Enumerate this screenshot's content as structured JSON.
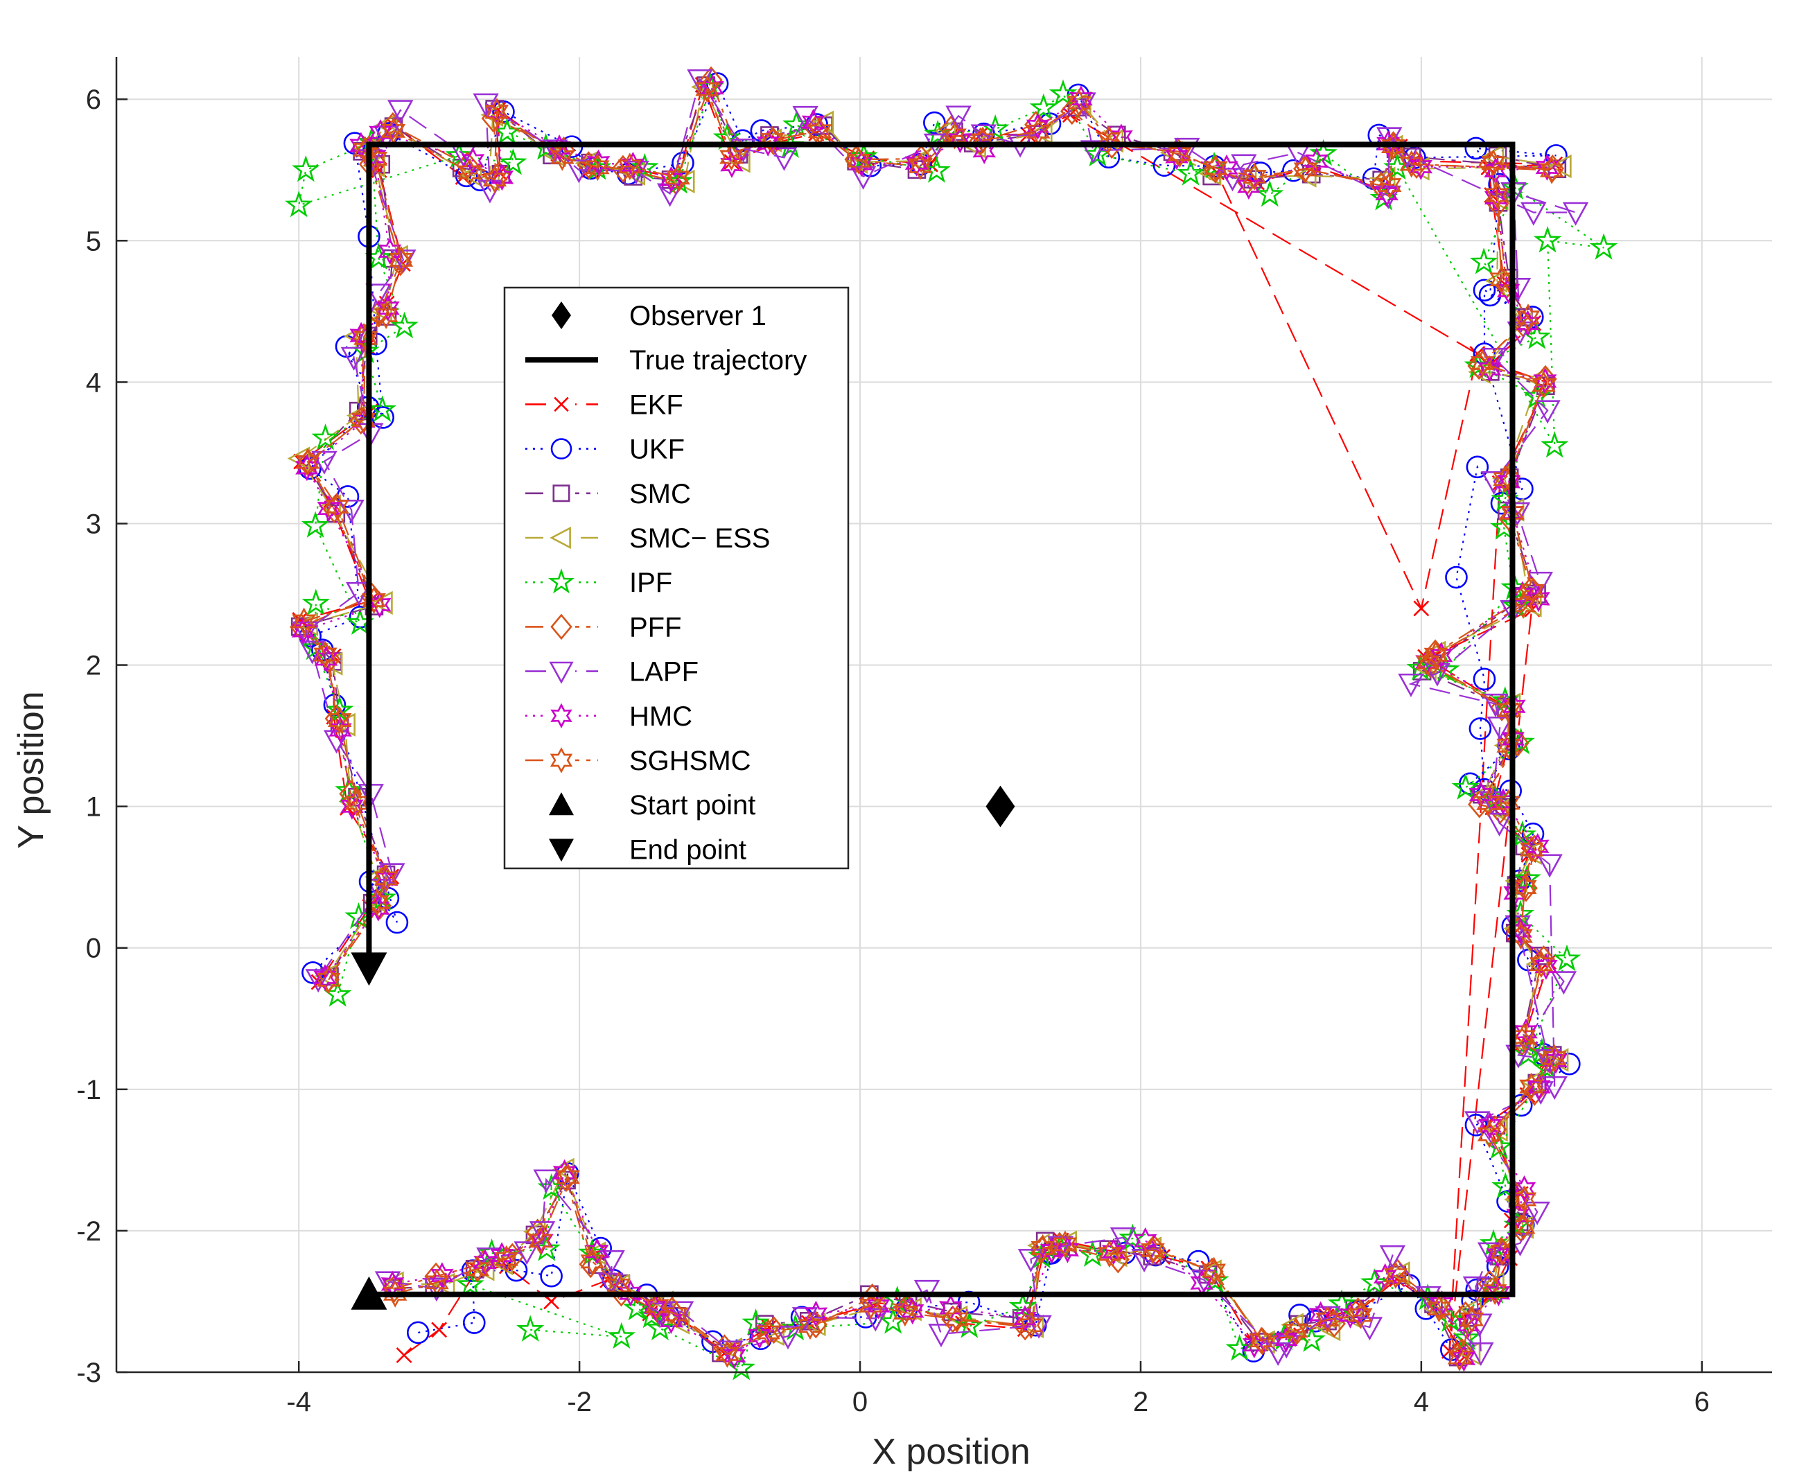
{
  "chart_data": {
    "type": "line",
    "title": "",
    "xlabel": "X position",
    "ylabel": "Y position",
    "xlim": [
      -5.3,
      6.5
    ],
    "ylim": [
      -3,
      6.3
    ],
    "xticks": [
      -4,
      -2,
      0,
      2,
      4,
      6
    ],
    "yticks": [
      -3,
      -2,
      -1,
      0,
      1,
      2,
      3,
      4,
      5,
      6
    ],
    "xtick_labels": [
      "-4",
      "-2",
      "0",
      "2",
      "4",
      "6"
    ],
    "ytick_labels": [
      "-3",
      "-2",
      "-1",
      "0",
      "1",
      "2",
      "3",
      "4",
      "5",
      "6"
    ],
    "grid": true,
    "legend_position": "center-left",
    "observer": {
      "name": "Observer 1",
      "x": 1.0,
      "y": 1.0,
      "color": "#000000"
    },
    "true_trajectory": {
      "name": "True trajectory",
      "color": "#000000",
      "points": [
        [
          -3.5,
          -2.45
        ],
        [
          4.65,
          -2.45
        ],
        [
          4.65,
          5.68
        ],
        [
          -3.5,
          5.68
        ],
        [
          -3.5,
          -0.15
        ]
      ]
    },
    "start_point": {
      "name": "Start point",
      "x": -3.5,
      "y": -2.45
    },
    "end_point": {
      "name": "End point",
      "x": -3.5,
      "y": -0.15
    },
    "base_estimate": [
      [
        -3.3,
        -2.42
      ],
      [
        -3.0,
        -2.35
      ],
      [
        -2.7,
        -2.25
      ],
      [
        -2.5,
        -2.2
      ],
      [
        -2.3,
        -2.05
      ],
      [
        -2.1,
        -1.6
      ],
      [
        -1.9,
        -2.2
      ],
      [
        -1.7,
        -2.4
      ],
      [
        -1.45,
        -2.55
      ],
      [
        -1.3,
        -2.6
      ],
      [
        -0.95,
        -2.85
      ],
      [
        -0.65,
        -2.7
      ],
      [
        -0.35,
        -2.65
      ],
      [
        0.1,
        -2.5
      ],
      [
        0.35,
        -2.55
      ],
      [
        0.7,
        -2.6
      ],
      [
        1.2,
        -2.65
      ],
      [
        1.3,
        -2.1
      ],
      [
        1.45,
        -2.12
      ],
      [
        1.8,
        -2.18
      ],
      [
        2.1,
        -2.13
      ],
      [
        2.5,
        -2.3
      ],
      [
        2.85,
        -2.75
      ],
      [
        3.1,
        -2.7
      ],
      [
        3.35,
        -2.65
      ],
      [
        3.55,
        -2.6
      ],
      [
        3.8,
        -2.3
      ],
      [
        4.1,
        -2.55
      ],
      [
        4.3,
        -2.88
      ],
      [
        4.35,
        -2.6
      ],
      [
        4.5,
        -2.4
      ],
      [
        4.6,
        -2.15
      ],
      [
        4.7,
        -1.95
      ],
      [
        4.72,
        -1.75
      ],
      [
        4.5,
        -1.3
      ],
      [
        4.8,
        -1.0
      ],
      [
        4.95,
        -0.8
      ],
      [
        4.75,
        -0.65
      ],
      [
        4.88,
        -0.1
      ],
      [
        4.7,
        0.1
      ],
      [
        4.72,
        0.45
      ],
      [
        4.78,
        0.7
      ],
      [
        4.6,
        1.0
      ],
      [
        4.45,
        1.05
      ],
      [
        4.65,
        1.45
      ],
      [
        4.6,
        1.7
      ],
      [
        4.05,
        2.0
      ],
      [
        4.1,
        2.05
      ],
      [
        4.75,
        2.45
      ],
      [
        4.78,
        2.5
      ],
      [
        4.62,
        3.05
      ],
      [
        4.6,
        3.3
      ],
      [
        4.85,
        4.0
      ],
      [
        4.45,
        4.12
      ],
      [
        4.75,
        4.45
      ],
      [
        4.58,
        4.7
      ],
      [
        4.55,
        5.3
      ],
      [
        4.5,
        5.55
      ],
      [
        4.95,
        5.52
      ],
      [
        3.95,
        5.55
      ],
      [
        3.8,
        5.65
      ],
      [
        3.75,
        5.4
      ],
      [
        3.2,
        5.5
      ],
      [
        2.8,
        5.45
      ],
      [
        2.55,
        5.5
      ],
      [
        2.25,
        5.6
      ],
      [
        1.8,
        5.7
      ],
      [
        1.55,
        5.95
      ],
      [
        1.25,
        5.8
      ],
      [
        0.85,
        5.7
      ],
      [
        0.65,
        5.75
      ],
      [
        0.45,
        5.55
      ],
      [
        0.0,
        5.55
      ],
      [
        -0.3,
        5.8
      ],
      [
        -0.6,
        5.7
      ],
      [
        -0.9,
        5.6
      ],
      [
        -1.1,
        6.1
      ],
      [
        -1.3,
        5.45
      ],
      [
        -1.65,
        5.5
      ],
      [
        -1.9,
        5.5
      ],
      [
        -2.15,
        5.6
      ],
      [
        -2.6,
        5.9
      ],
      [
        -2.6,
        5.45
      ],
      [
        -2.8,
        5.5
      ],
      [
        -3.35,
        5.8
      ],
      [
        -3.5,
        5.65
      ],
      [
        -3.45,
        5.55
      ],
      [
        -3.3,
        4.88
      ],
      [
        -3.4,
        4.5
      ],
      [
        -3.55,
        4.3
      ],
      [
        -3.55,
        3.75
      ],
      [
        -3.95,
        3.45
      ],
      [
        -3.75,
        3.1
      ],
      [
        -3.45,
        2.45
      ],
      [
        -3.95,
        2.3
      ],
      [
        -3.8,
        2.05
      ],
      [
        -3.7,
        1.6
      ],
      [
        -3.6,
        1.05
      ],
      [
        -3.4,
        0.5
      ],
      [
        -3.45,
        0.3
      ],
      [
        -3.8,
        -0.2
      ]
    ],
    "series": [
      {
        "name": "EKF",
        "color": "#FF0000",
        "dash": "30,14",
        "marker": "x",
        "noise": 0.06,
        "seed": 11,
        "overrides": {
          "0": [
            -3.25,
            -2.88
          ],
          "1": [
            -3.0,
            -2.7
          ],
          "4": [
            -2.2,
            -2.5
          ],
          "5": [
            -1.8,
            -2.35
          ],
          "50": [
            4.2,
            -2.85
          ],
          "65": [
            4.0,
            2.4
          ],
          "66": [
            4.4,
            4.2
          ]
        }
      },
      {
        "name": "UKF",
        "color": "#0000FF",
        "dash": "3,8",
        "marker": "circle",
        "noise": 0.12,
        "seed": 23,
        "overrides": {
          "0": [
            -3.15,
            -2.72
          ],
          "1": [
            -2.75,
            -2.65
          ],
          "3": [
            -2.45,
            -2.28
          ],
          "4": [
            -2.2,
            -2.32
          ],
          "45": [
            4.45,
            1.12
          ],
          "46": [
            4.42,
            1.55
          ],
          "47": [
            4.45,
            1.9
          ],
          "48": [
            4.25,
            2.62
          ],
          "49": [
            4.4,
            3.4
          ],
          "52": [
            4.45,
            4.2
          ],
          "53": [
            4.45,
            4.65
          ],
          "86": [
            -3.5,
            5.03
          ],
          "87": [
            -3.45,
            4.27
          ],
          "88": [
            -3.4,
            3.75
          ],
          "97": [
            -3.3,
            0.18
          ]
        }
      },
      {
        "name": "SMC",
        "color": "#7E2F8E",
        "dash": "26,10,6,10",
        "marker": "square",
        "noise": 0.05,
        "seed": 37,
        "overrides": {}
      },
      {
        "name": "SMC− ESS",
        "color": "#B8A936",
        "dash": "26,14",
        "marker": "triangle-left",
        "noise": 0.05,
        "seed": 41,
        "overrides": {}
      },
      {
        "name": "IPF",
        "color": "#00CC00",
        "dash": "3,8",
        "marker": "pentagram",
        "noise": 0.16,
        "seed": 53,
        "overrides": {
          "0": [
            -2.35,
            -2.7
          ],
          "1": [
            -1.7,
            -2.75
          ],
          "84": [
            -4.0,
            5.25
          ],
          "85": [
            -3.95,
            5.5
          ],
          "57": [
            5.3,
            4.95
          ],
          "58": [
            4.9,
            5.0
          ],
          "59": [
            4.95,
            3.55
          ]
        }
      },
      {
        "name": "PFF",
        "color": "#D95319",
        "dash": "26,10,6,10",
        "marker": "diamond",
        "noise": 0.04,
        "seed": 59,
        "overrides": {}
      },
      {
        "name": "LAPF",
        "color": "#9B30D6",
        "dash": "30,14",
        "marker": "triangle-down",
        "noise": 0.14,
        "seed": 71,
        "overrides": {
          "57": [
            5.1,
            5.2
          ],
          "58": [
            4.8,
            5.2
          ],
          "40": [
            4.95,
            -0.98
          ],
          "52": [
            4.9,
            3.8
          ]
        }
      },
      {
        "name": "HMC",
        "color": "#CC00CC",
        "dash": "3,8",
        "marker": "hexagram",
        "noise": 0.07,
        "seed": 83,
        "overrides": {}
      },
      {
        "name": "SGHSMC",
        "color": "#D95319",
        "dash": "26,10,6,10",
        "marker": "hexagram-open",
        "noise": 0.03,
        "seed": 97,
        "overrides": {}
      }
    ],
    "legend_entries": [
      "Observer 1",
      "True trajectory",
      "EKF",
      "UKF",
      "SMC",
      "SMC− ESS",
      "IPF",
      "PFF",
      "LAPF",
      "HMC",
      "SGHSMC",
      "Start point",
      "End point"
    ]
  }
}
